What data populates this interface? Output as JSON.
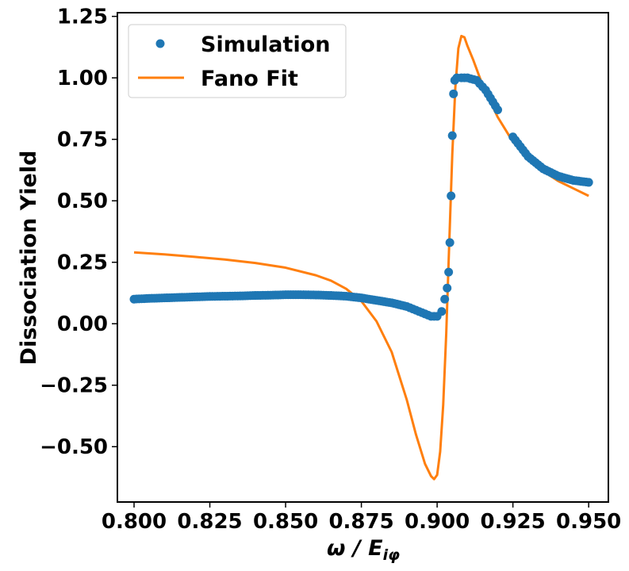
{
  "chart_data": {
    "type": "scatter",
    "title": "",
    "xlabel": "ω / E_iφ",
    "xlabel_main": "ω / E",
    "xlabel_sub": "iφ",
    "ylabel": "Dissociation Yield",
    "xlim": [
      0.7945,
      0.9565
    ],
    "ylim": [
      -0.725,
      1.265
    ],
    "xticks": [
      0.8,
      0.825,
      0.85,
      0.875,
      0.9,
      0.925,
      0.95
    ],
    "xtick_labels": [
      "0.800",
      "0.825",
      "0.850",
      "0.875",
      "0.900",
      "0.925",
      "0.950"
    ],
    "yticks": [
      -0.5,
      -0.25,
      0.0,
      0.25,
      0.5,
      0.75,
      1.0,
      1.25
    ],
    "ytick_labels": [
      "−0.50",
      "−0.25",
      "0.00",
      "0.25",
      "0.50",
      "0.75",
      "1.00",
      "1.25"
    ],
    "grid": false,
    "legend": {
      "position": "top-left"
    },
    "colors": {
      "simulation": "#1f77b4",
      "fit": "#ff7f0e"
    },
    "series": [
      {
        "name": "Simulation",
        "kind": "scatter",
        "x": [
          0.8,
          0.805,
          0.81,
          0.815,
          0.82,
          0.825,
          0.83,
          0.835,
          0.84,
          0.845,
          0.85,
          0.855,
          0.86,
          0.865,
          0.87,
          0.875,
          0.88,
          0.885,
          0.89,
          0.893,
          0.896,
          0.898,
          0.9,
          0.9015,
          0.9025,
          0.9033,
          0.9038,
          0.9042,
          0.9046,
          0.905,
          0.9054,
          0.9058,
          0.9065,
          0.908,
          0.91,
          0.913,
          0.916,
          0.92,
          0.925,
          0.93,
          0.935,
          0.94,
          0.945,
          0.95
        ],
        "y": [
          0.1,
          0.103,
          0.105,
          0.107,
          0.109,
          0.111,
          0.112,
          0.113,
          0.115,
          0.116,
          0.118,
          0.118,
          0.117,
          0.115,
          0.112,
          0.105,
          0.095,
          0.085,
          0.07,
          0.055,
          0.04,
          0.03,
          0.03,
          0.05,
          0.1,
          0.145,
          0.21,
          0.33,
          0.52,
          0.765,
          0.935,
          0.99,
          1.0,
          1.0,
          1.0,
          0.99,
          0.95,
          0.87,
          0.76,
          0.68,
          0.63,
          0.6,
          0.583,
          0.575
        ]
      },
      {
        "name": "Fano Fit",
        "kind": "line",
        "x": [
          0.8,
          0.81,
          0.82,
          0.83,
          0.84,
          0.85,
          0.86,
          0.865,
          0.87,
          0.875,
          0.88,
          0.885,
          0.89,
          0.893,
          0.896,
          0.898,
          0.899,
          0.9,
          0.901,
          0.902,
          0.903,
          0.904,
          0.905,
          0.906,
          0.907,
          0.908,
          0.909,
          0.91,
          0.912,
          0.915,
          0.92,
          0.925,
          0.93,
          0.935,
          0.94,
          0.945,
          0.95
        ],
        "y": [
          0.29,
          0.282,
          0.272,
          0.261,
          0.247,
          0.228,
          0.197,
          0.175,
          0.142,
          0.092,
          0.01,
          -0.115,
          -0.31,
          -0.45,
          -0.57,
          -0.62,
          -0.632,
          -0.615,
          -0.52,
          -0.33,
          -0.04,
          0.33,
          0.69,
          0.96,
          1.12,
          1.17,
          1.165,
          1.13,
          1.07,
          0.97,
          0.84,
          0.74,
          0.67,
          0.62,
          0.58,
          0.55,
          0.52
        ]
      }
    ]
  }
}
